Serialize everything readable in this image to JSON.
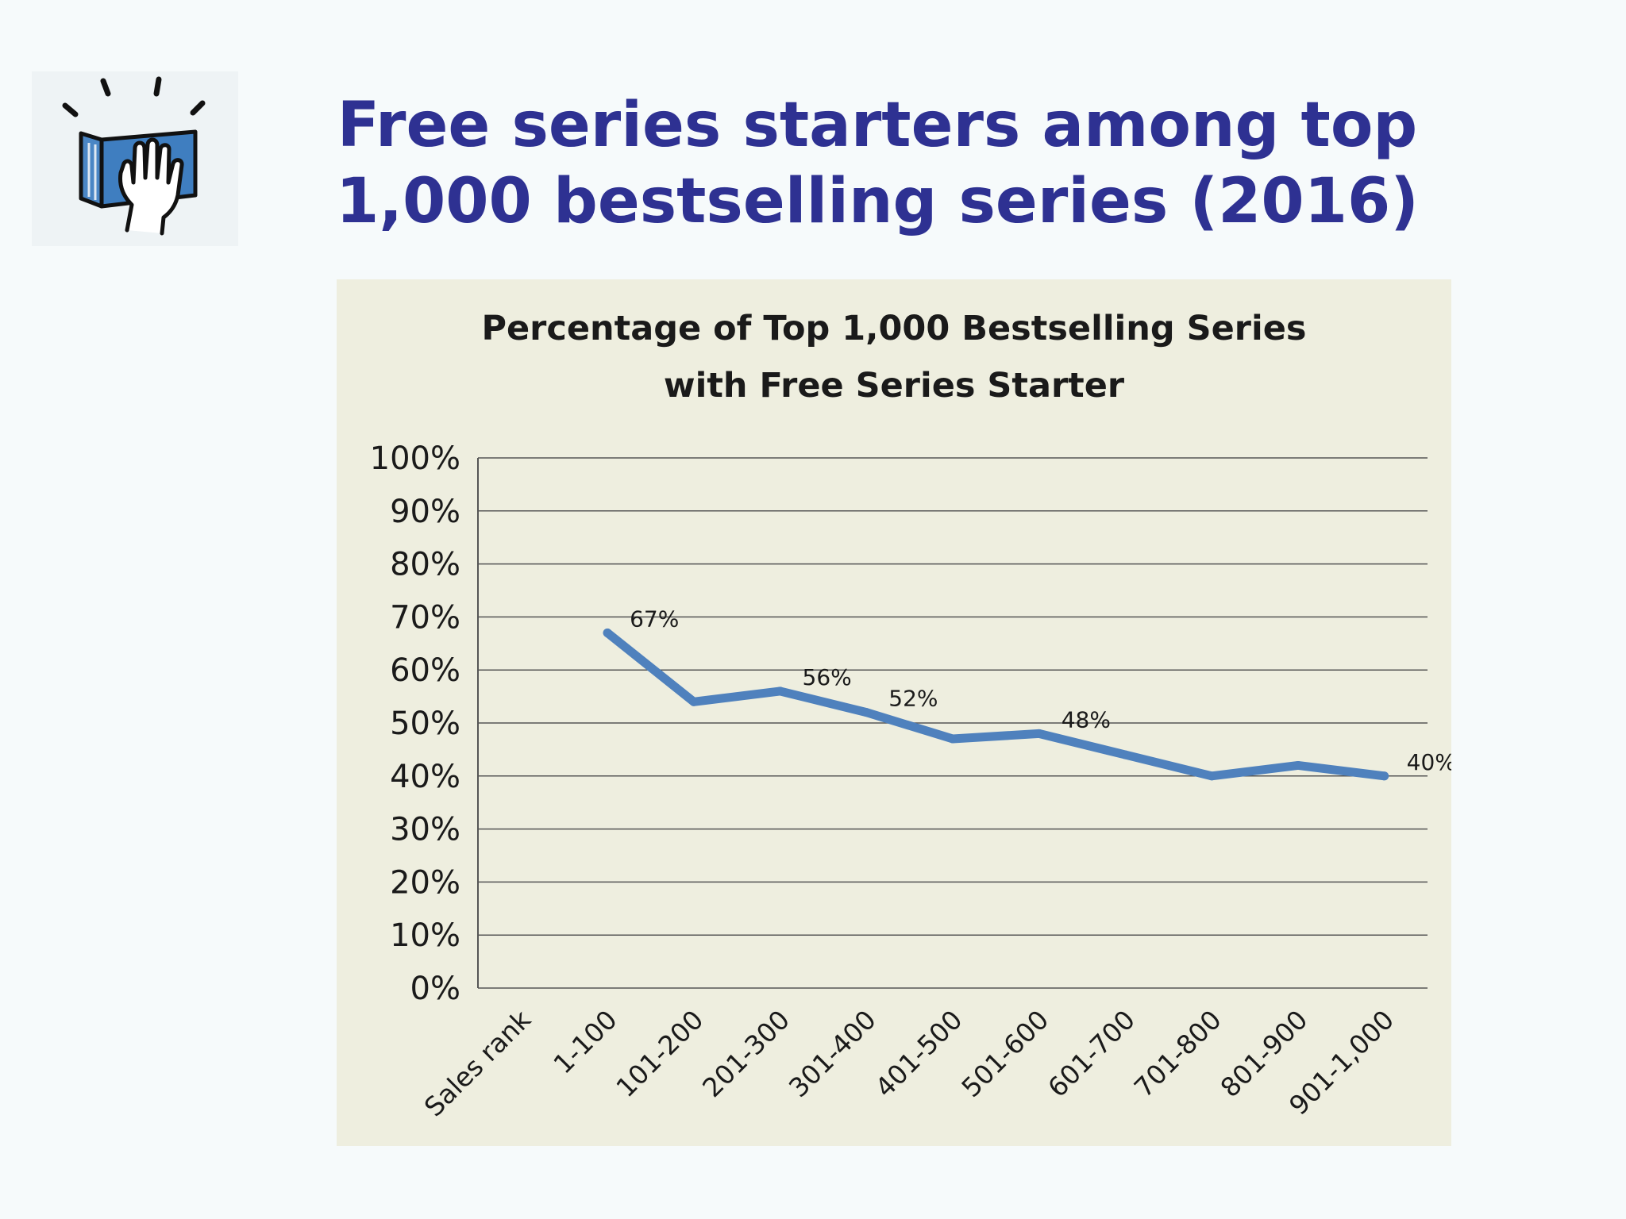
{
  "slide": {
    "title_line1": "Free series starters among top",
    "title_line2": "1,000 bestselling series (2016)",
    "title_color": "#2e3192",
    "logo_icon": "book-hand-icon"
  },
  "chart_data": {
    "type": "line",
    "title_line1": "Percentage of Top 1,000 Bestselling Series",
    "title_line2": "with Free Series Starter",
    "categories": [
      "Sales rank",
      "1-100",
      "101-200",
      "201-300",
      "301-400",
      "401-500",
      "501-600",
      "601-700",
      "701-800",
      "801-900",
      "901-1,000"
    ],
    "series": [
      {
        "values": [
          null,
          67,
          54,
          56,
          52,
          47,
          48,
          44,
          40,
          42,
          40
        ],
        "data_labels": [
          null,
          "67%",
          null,
          "56%",
          "52%",
          null,
          "48%",
          null,
          null,
          null,
          "40%"
        ],
        "color": "#4f81bd"
      }
    ],
    "y_ticks": [
      "0%",
      "10%",
      "20%",
      "30%",
      "40%",
      "50%",
      "60%",
      "70%",
      "80%",
      "90%",
      "100%"
    ],
    "ylim": [
      0,
      100
    ],
    "grid": true,
    "legend": "none",
    "background_color": "#eeeedf"
  }
}
